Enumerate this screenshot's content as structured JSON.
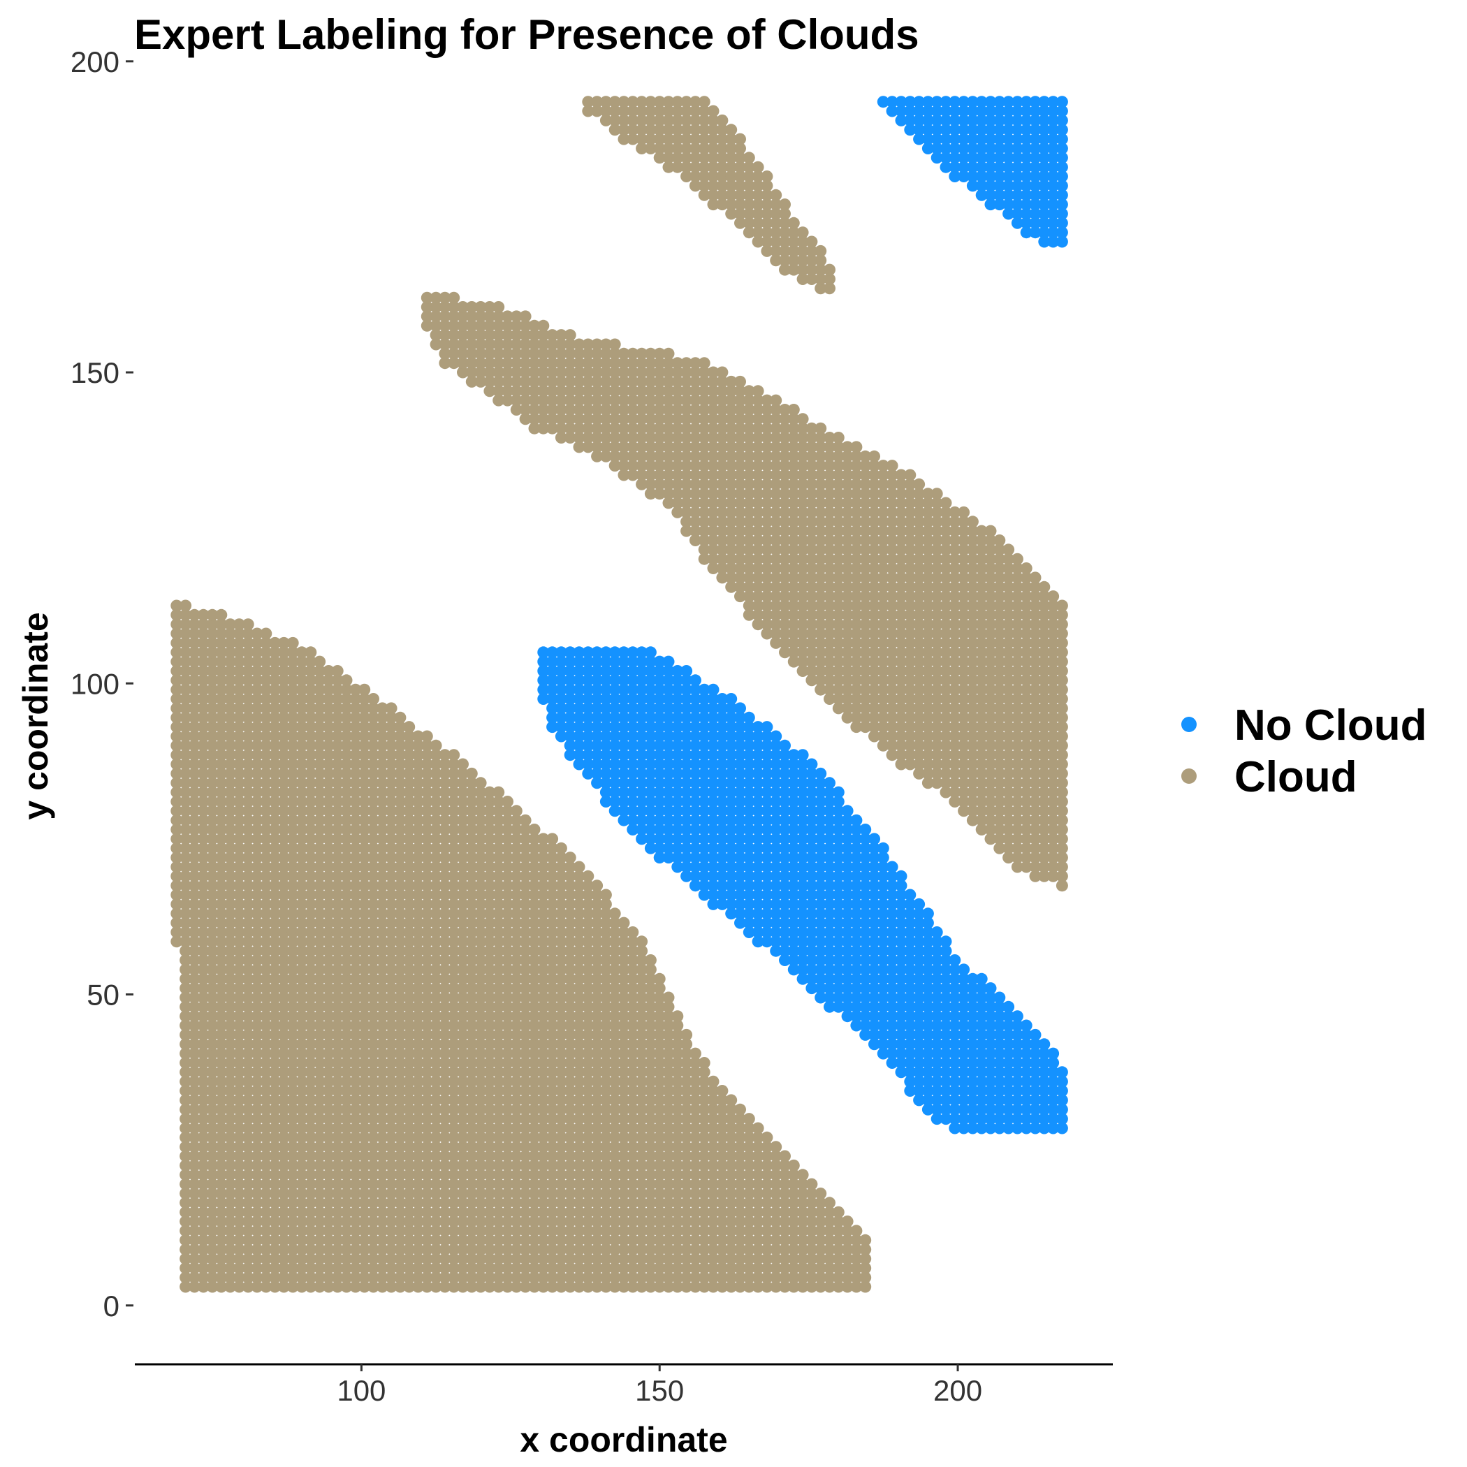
{
  "chart_data": {
    "type": "scatter",
    "title": "Expert Labeling for Presence of Clouds",
    "xlabel": "x coordinate",
    "ylabel": "y coordinate",
    "xlim": [
      62,
      226
    ],
    "ylim": [
      -8,
      202
    ],
    "xticks": [
      100,
      150,
      200
    ],
    "yticks": [
      0,
      50,
      100,
      150,
      200
    ],
    "grid": false,
    "legend_position": "right",
    "point_step": 1.5,
    "series": [
      {
        "name": "No Cloud",
        "color": "#1492FF",
        "regions": [
          [
            [
              130,
              106
            ],
            [
              148,
              106
            ],
            [
              160,
              99
            ],
            [
              175,
              88
            ],
            [
              186,
              76
            ],
            [
              200,
              56
            ],
            [
              214,
              44
            ],
            [
              219,
              36
            ],
            [
              219,
              28
            ],
            [
              202,
              27
            ],
            [
              196,
              30
            ],
            [
              186,
              41
            ],
            [
              172,
              54
            ],
            [
              157,
              66
            ],
            [
              145,
              76
            ],
            [
              132,
              92
            ],
            [
              130,
              98
            ]
          ],
          [
            [
              187,
              194
            ],
            [
              219,
              194
            ],
            [
              219,
              169
            ],
            [
              212,
              172
            ],
            [
              200,
              181
            ],
            [
              192,
              189
            ]
          ]
        ]
      },
      {
        "name": "Cloud",
        "color": "#AD9D7B",
        "regions": [
          [
            [
              68,
              113
            ],
            [
              75,
              112
            ],
            [
              90,
              106
            ],
            [
              104,
              97
            ],
            [
              119,
              86
            ],
            [
              138,
              70
            ],
            [
              149,
              56
            ],
            [
              155,
              43
            ],
            [
              163,
              32
            ],
            [
              175,
              21
            ],
            [
              186,
              10
            ],
            [
              186,
              3
            ],
            [
              70,
              3
            ],
            [
              69,
              58
            ]
          ],
          [
            [
              110,
              163
            ],
            [
              123,
              161
            ],
            [
              138,
              155
            ],
            [
              148,
              154
            ],
            [
              160,
              151
            ],
            [
              178,
              141
            ],
            [
              193,
              133
            ],
            [
              208,
              123
            ],
            [
              219,
              112
            ],
            [
              219,
              67
            ],
            [
              210,
              70
            ],
            [
              200,
              80
            ],
            [
              189,
              88
            ],
            [
              178,
              97
            ],
            [
              165,
              111
            ],
            [
              157,
              120
            ],
            [
              152,
              128
            ],
            [
              140,
              136
            ],
            [
              129,
              141
            ],
            [
              122,
              146
            ],
            [
              113,
              152
            ],
            [
              110,
              159
            ]
          ],
          [
            [
              138,
              194
            ],
            [
              158,
              194
            ],
            [
              165,
              186
            ],
            [
              172,
              176
            ],
            [
              180,
              166
            ],
            [
              178,
              162
            ],
            [
              170,
              167
            ],
            [
              160,
              176
            ],
            [
              150,
              184
            ],
            [
              143,
              188
            ],
            [
              138,
              192
            ]
          ]
        ]
      }
    ]
  }
}
